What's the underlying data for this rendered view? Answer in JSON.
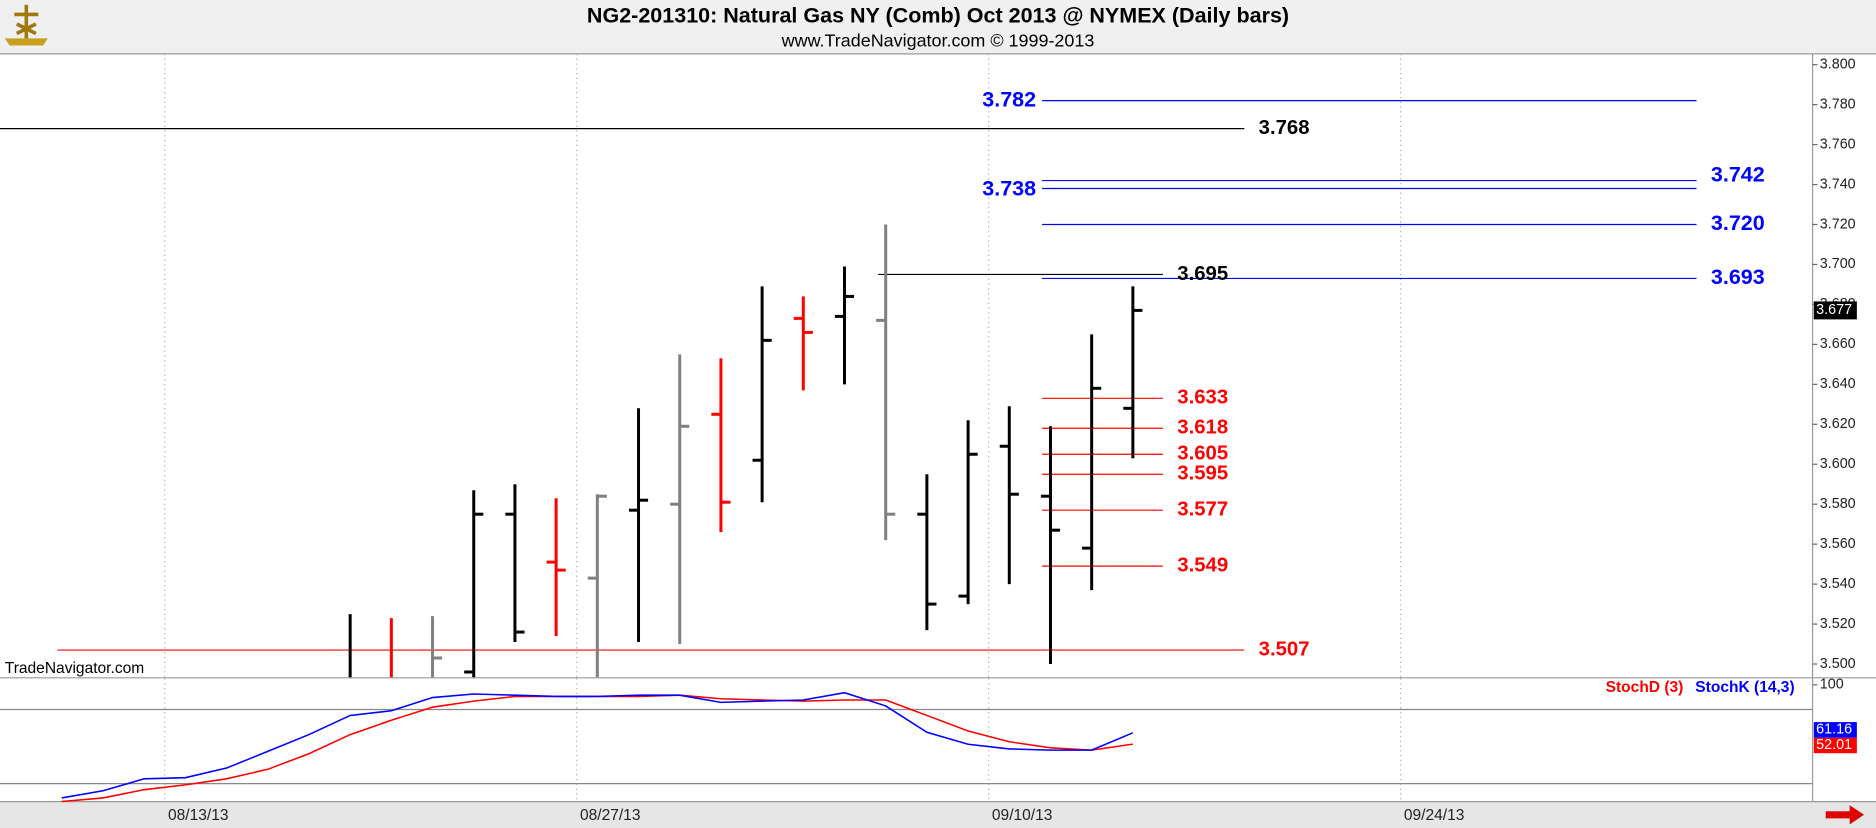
{
  "chart_data": [
    {
      "type": "ohlc",
      "title": "NG2-201310:  Natural Gas NY (Comb) Oct 2013 @ NYMEX  (Daily bars)",
      "subtitle": "www.TradeNavigator.com © 1999-2013",
      "watermark": "TradeNavigator.com",
      "x": [
        "2013-08-19",
        "2013-08-20",
        "2013-08-21",
        "2013-08-22",
        "2013-08-23",
        "2013-08-26",
        "2013-08-27",
        "2013-08-28",
        "2013-08-29",
        "2013-08-30",
        "2013-09-02",
        "2013-09-03",
        "2013-09-04",
        "2013-09-05",
        "2013-09-06",
        "2013-09-09",
        "2013-09-10",
        "2013-09-11",
        "2013-09-12",
        "2013-09-13"
      ],
      "open": [
        3.49,
        3.489,
        3.49,
        3.496,
        3.575,
        3.551,
        3.543,
        3.577,
        3.58,
        3.625,
        3.602,
        3.673,
        3.674,
        3.672,
        3.575,
        3.534,
        3.609,
        3.584,
        3.558,
        3.628
      ],
      "high": [
        3.525,
        3.523,
        3.524,
        3.587,
        3.59,
        3.583,
        3.585,
        3.628,
        3.655,
        3.653,
        3.689,
        3.684,
        3.699,
        3.72,
        3.595,
        3.622,
        3.629,
        3.619,
        3.665,
        3.689
      ],
      "low": [
        3.48,
        3.48,
        3.48,
        3.48,
        3.511,
        3.514,
        3.48,
        3.511,
        3.51,
        3.566,
        3.581,
        3.637,
        3.64,
        3.562,
        3.517,
        3.53,
        3.54,
        3.5,
        3.537,
        3.603
      ],
      "close": [
        3.488,
        3.486,
        3.503,
        3.575,
        3.516,
        3.547,
        3.584,
        3.582,
        3.619,
        3.581,
        3.662,
        3.666,
        3.684,
        3.575,
        3.53,
        3.605,
        3.585,
        3.567,
        3.638,
        3.677
      ],
      "colors": [
        "#000000",
        "#ff0000",
        "#808080",
        "#000000",
        "#000000",
        "#ff0000",
        "#808080",
        "#000000",
        "#808080",
        "#ff0000",
        "#000000",
        "#ff0000",
        "#000000",
        "#808080",
        "#000000",
        "#000000",
        "#000000",
        "#000000",
        "#000000",
        "#000000"
      ],
      "xlim": [
        "2013-08-07",
        "2013-10-08"
      ],
      "xticks": [
        {
          "value": "2013-08-13",
          "label": "08/13/13"
        },
        {
          "value": "2013-08-27",
          "label": "08/27/13"
        },
        {
          "value": "2013-09-10",
          "label": "09/10/13"
        },
        {
          "value": "2013-09-24",
          "label": "09/24/13"
        }
      ],
      "ylim": [
        3.4934,
        3.8054
      ],
      "yticks": [
        {
          "value": 3.5,
          "label": "3.500"
        },
        {
          "value": 3.52,
          "label": "3.520"
        },
        {
          "value": 3.54,
          "label": "3.540"
        },
        {
          "value": 3.56,
          "label": "3.560"
        },
        {
          "value": 3.58,
          "label": "3.580"
        },
        {
          "value": 3.6,
          "label": "3.600"
        },
        {
          "value": 3.62,
          "label": "3.620"
        },
        {
          "value": 3.64,
          "label": "3.640"
        },
        {
          "value": 3.66,
          "label": "3.660"
        },
        {
          "value": 3.68,
          "label": "3.680"
        },
        {
          "value": 3.7,
          "label": "3.700"
        },
        {
          "value": 3.72,
          "label": "3.720"
        },
        {
          "value": 3.74,
          "label": "3.740"
        },
        {
          "value": 3.76,
          "label": "3.760"
        },
        {
          "value": 3.78,
          "label": "3.780"
        },
        {
          "value": 3.8,
          "label": "3.800"
        }
      ],
      "grid": true,
      "levels": [
        {
          "value": 3.782,
          "label": "3.782",
          "color": "#0000ff"
        },
        {
          "value": 3.768,
          "label": "3.768",
          "color": "#000000"
        },
        {
          "value": 3.742,
          "label": "3.742",
          "color": "#0000ff"
        },
        {
          "value": 3.738,
          "label": "3.738",
          "color": "#0000ff"
        },
        {
          "value": 3.72,
          "label": "3.720",
          "color": "#0000ff"
        },
        {
          "value": 3.695,
          "label": "3.695",
          "color": "#000000"
        },
        {
          "value": 3.693,
          "label": "3.693",
          "color": "#0000ff"
        },
        {
          "value": 3.633,
          "label": "3.633",
          "color": "#ff0000"
        },
        {
          "value": 3.618,
          "label": "3.618",
          "color": "#ff0000"
        },
        {
          "value": 3.605,
          "label": "3.605",
          "color": "#ff0000"
        },
        {
          "value": 3.595,
          "label": "3.595",
          "color": "#ff0000"
        },
        {
          "value": 3.577,
          "label": "3.577",
          "color": "#ff0000"
        },
        {
          "value": 3.549,
          "label": "3.549",
          "color": "#ff0000"
        },
        {
          "value": 3.507,
          "label": "3.507",
          "color": "#ff0000"
        }
      ]
    },
    {
      "type": "line",
      "x": [
        "2013-08-08",
        "2013-08-09",
        "2013-08-12",
        "2013-08-13",
        "2013-08-14",
        "2013-08-15",
        "2013-08-16",
        "2013-08-19",
        "2013-08-20",
        "2013-08-21",
        "2013-08-22",
        "2013-08-23",
        "2013-08-26",
        "2013-08-27",
        "2013-08-28",
        "2013-08-29",
        "2013-08-30",
        "2013-09-02",
        "2013-09-03",
        "2013-09-04",
        "2013-09-05",
        "2013-09-06",
        "2013-09-09",
        "2013-09-10",
        "2013-09-11",
        "2013-09-12",
        "2013-09-13"
      ],
      "series": [
        {
          "name": "StochD (3)",
          "color": "#ff0000",
          "values": [
            5.5,
            8.4,
            15.1,
            19.0,
            23.9,
            31.6,
            44.2,
            59.7,
            71.3,
            81.9,
            86.8,
            90.6,
            90.6,
            90.6,
            90.6,
            91.6,
            88.7,
            87.7,
            86.8,
            87.7,
            87.7,
            75.2,
            62.6,
            53.9,
            49.0,
            47.1,
            52.01
          ]
        },
        {
          "name": "StochK (14,3)",
          "color": "#0000ff",
          "values": [
            8.4,
            14.2,
            23.9,
            24.8,
            32.6,
            46.1,
            59.7,
            75.2,
            79.0,
            89.7,
            92.6,
            91.6,
            90.6,
            90.6,
            91.6,
            91.6,
            85.8,
            86.8,
            87.7,
            93.6,
            82.9,
            61.6,
            51.9,
            48.1,
            47.1,
            47.1,
            61.16
          ]
        }
      ],
      "ylim": [
        5.4,
        105.2
      ],
      "yticks": [
        100
      ],
      "hlines": [
        80,
        20
      ]
    }
  ]
}
